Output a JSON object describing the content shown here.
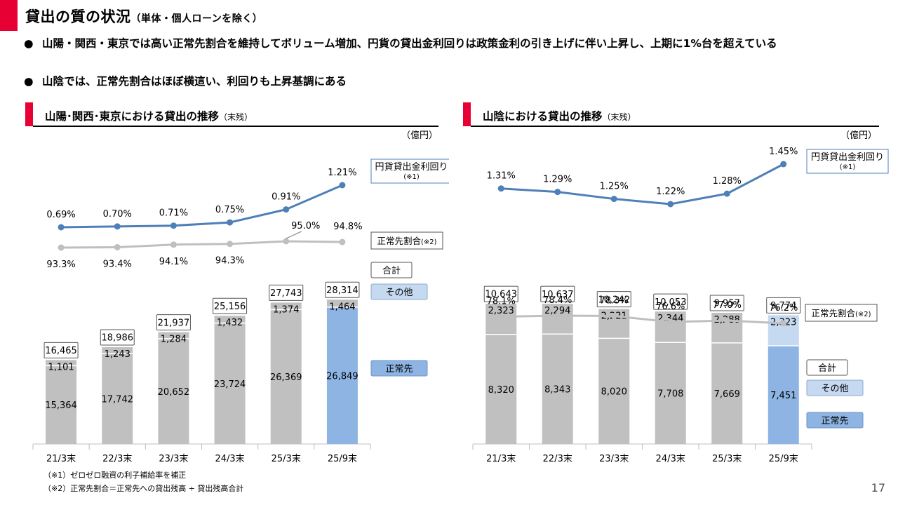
{
  "header": {
    "title": "貸出の質の状況",
    "subtitle": "（単体・個人ローンを除く）"
  },
  "bullets": [
    {
      "dot": "●",
      "text": "山陽・関西・東京では高い正常先割合を維持してボリューム増加、円貨の貸出金利回りは政策金利の引き上げに伴い上昇し、上期に1%台を超えている"
    },
    {
      "dot": "●",
      "text": "山陰では、正常先割合はほぼ横這い、利回りも上昇基調にある"
    }
  ],
  "charts_meta": {
    "left_title": "山陽･関西･東京における貸出の推移",
    "left_title_sub": "（末残）",
    "right_title": "山陰における貸出の推移",
    "right_title_sub": "（末残）",
    "unit": "（億円）"
  },
  "colors": {
    "accent": "#e60033",
    "bar_gray": "#c0c0c0",
    "bar_highlight": "#8db4e2",
    "other_highlight": "#c5d9f1",
    "rate_line": "#4f7fb8",
    "ratio_line": "#bfbfbf"
  },
  "chart_data": [
    {
      "type": "bar",
      "title": "山陽･関西･東京における貸出の推移",
      "unit": "億円",
      "categories": [
        "21/3末",
        "22/3末",
        "23/3末",
        "24/3末",
        "25/3末",
        "25/9末"
      ],
      "series": [
        {
          "name": "正常先",
          "values": [
            15364,
            17742,
            20652,
            23724,
            26369,
            26849
          ]
        },
        {
          "name": "その他",
          "values": [
            1101,
            1243,
            1284,
            1432,
            1374,
            1464
          ]
        }
      ],
      "totals": [
        16465,
        18986,
        21937,
        25156,
        27743,
        28314
      ],
      "totals_label": "合計",
      "rates": {
        "name": "円貨貸出金利回り",
        "note": "(※1)",
        "labels": [
          "0.69%",
          "0.70%",
          "0.71%",
          "0.75%",
          "0.91%",
          "1.21%"
        ],
        "values": [
          0.69,
          0.7,
          0.71,
          0.75,
          0.91,
          1.21
        ]
      },
      "ratios": {
        "name": "正常先割合",
        "note": "(※2)",
        "labels": [
          "93.3%",
          "93.4%",
          "94.1%",
          "94.3%",
          "95.0%",
          "94.8%"
        ],
        "values": [
          93.3,
          93.4,
          94.1,
          94.3,
          95.0,
          94.8
        ]
      },
      "ylim": [
        0,
        30000
      ]
    },
    {
      "type": "bar",
      "title": "山陰における貸出の推移",
      "unit": "億円",
      "categories": [
        "21/3末",
        "22/3末",
        "23/3末",
        "24/3末",
        "25/3末",
        "25/9末"
      ],
      "series": [
        {
          "name": "正常先",
          "values": [
            8320,
            8343,
            8020,
            7708,
            7669,
            7451
          ]
        },
        {
          "name": "その他",
          "values": [
            2323,
            2294,
            2221,
            2344,
            2288,
            2323
          ]
        }
      ],
      "totals": [
        10643,
        10637,
        10242,
        10053,
        9957,
        9774
      ],
      "totals_label": "合計",
      "rates": {
        "name": "円貨貸出金利回り",
        "note": "(※1)",
        "labels": [
          "1.31%",
          "1.29%",
          "1.25%",
          "1.22%",
          "1.28%",
          "1.45%"
        ],
        "values": [
          1.31,
          1.29,
          1.25,
          1.22,
          1.28,
          1.45
        ]
      },
      "ratios": {
        "name": "正常先割合",
        "note": "(※2)",
        "labels": [
          "78.1%",
          "78.4%",
          "78.3%",
          "76.6%",
          "77.0%",
          "76.2%"
        ],
        "values": [
          78.1,
          78.4,
          78.3,
          76.6,
          77.0,
          76.2
        ]
      },
      "ylim": [
        0,
        14000
      ]
    }
  ],
  "footnotes": [
    "（※1）ゼロゼロ融資の利子補給率を補正",
    "（※2）正常先割合＝正常先への貸出残高 ÷ 貸出残高合計"
  ],
  "page_number": "17"
}
